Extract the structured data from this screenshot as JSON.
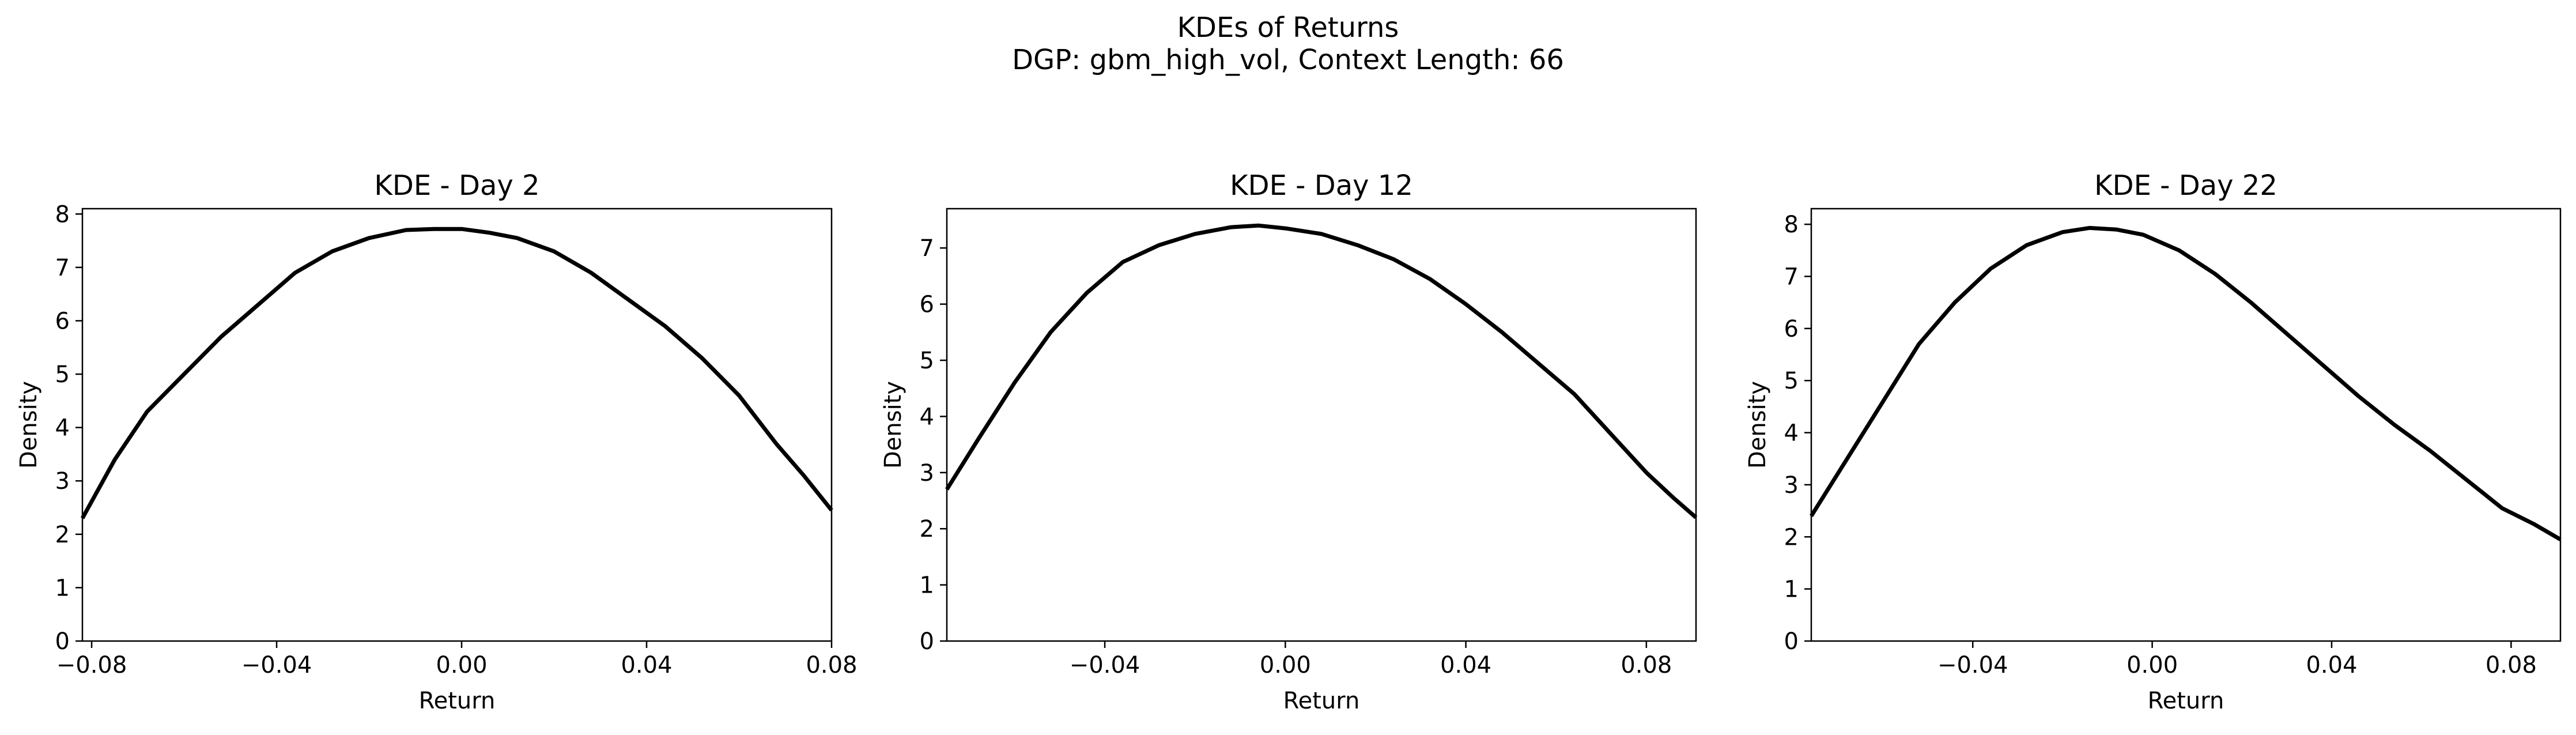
{
  "figure": {
    "title_line1": "KDEs of Returns",
    "title_line2": "DGP: gbm_high_vol, Context Length: 66"
  },
  "colors": {
    "curve": "#000000",
    "axes": "#000000",
    "background": "#ffffff"
  },
  "chart_data": [
    {
      "type": "line",
      "title": "KDE - Day 2",
      "xlabel": "Return",
      "ylabel": "Density",
      "xlim": [
        -0.082,
        0.08
      ],
      "ylim": [
        0,
        8.1
      ],
      "xticks": [
        -0.08,
        -0.04,
        0.0,
        0.04,
        0.08
      ],
      "xtick_labels": [
        "−0.08",
        "−0.04",
        "0.00",
        "0.04",
        "0.08"
      ],
      "yticks": [
        0,
        1,
        2,
        3,
        4,
        5,
        6,
        7,
        8
      ],
      "ytick_labels": [
        "0",
        "1",
        "2",
        "3",
        "4",
        "5",
        "6",
        "7",
        "8"
      ],
      "grid": false,
      "series": [
        {
          "x": [
            -0.082,
            -0.075,
            -0.068,
            -0.06,
            -0.052,
            -0.044,
            -0.036,
            -0.028,
            -0.02,
            -0.012,
            -0.006,
            0.0,
            0.006,
            0.012,
            0.02,
            0.028,
            0.036,
            0.044,
            0.052,
            0.06,
            0.068,
            0.074,
            0.08
          ],
          "y": [
            2.3,
            3.4,
            4.3,
            5.0,
            5.7,
            6.3,
            6.9,
            7.3,
            7.55,
            7.7,
            7.72,
            7.72,
            7.65,
            7.55,
            7.3,
            6.9,
            6.4,
            5.9,
            5.3,
            4.6,
            3.7,
            3.1,
            2.45
          ]
        }
      ]
    },
    {
      "type": "line",
      "title": "KDE - Day 12",
      "xlabel": "Return",
      "ylabel": "Density",
      "xlim": [
        -0.075,
        0.091
      ],
      "ylim": [
        0,
        7.7
      ],
      "xticks": [
        -0.04,
        0.0,
        0.04,
        0.08
      ],
      "xtick_labels": [
        "−0.04",
        "0.00",
        "0.04",
        "0.08"
      ],
      "yticks": [
        0,
        1,
        2,
        3,
        4,
        5,
        6,
        7
      ],
      "ytick_labels": [
        "0",
        "1",
        "2",
        "3",
        "4",
        "5",
        "6",
        "7"
      ],
      "grid": false,
      "series": [
        {
          "x": [
            -0.075,
            -0.068,
            -0.06,
            -0.052,
            -0.044,
            -0.036,
            -0.028,
            -0.02,
            -0.012,
            -0.006,
            0.0,
            0.008,
            0.016,
            0.024,
            0.032,
            0.04,
            0.048,
            0.056,
            0.064,
            0.072,
            0.08,
            0.086,
            0.091
          ],
          "y": [
            2.7,
            3.6,
            4.6,
            5.5,
            6.2,
            6.75,
            7.05,
            7.25,
            7.37,
            7.4,
            7.35,
            7.25,
            7.05,
            6.8,
            6.45,
            6.0,
            5.5,
            4.95,
            4.4,
            3.7,
            3.0,
            2.55,
            2.2
          ]
        }
      ]
    },
    {
      "type": "line",
      "title": "KDE - Day 22",
      "xlabel": "Return",
      "ylabel": "Density",
      "xlim": [
        -0.076,
        0.091
      ],
      "ylim": [
        0,
        8.3
      ],
      "xticks": [
        -0.04,
        0.0,
        0.04,
        0.08
      ],
      "xtick_labels": [
        "−0.04",
        "0.00",
        "0.04",
        "0.08"
      ],
      "yticks": [
        0,
        1,
        2,
        3,
        4,
        5,
        6,
        7,
        8
      ],
      "ytick_labels": [
        "0",
        "1",
        "2",
        "3",
        "4",
        "5",
        "6",
        "7",
        "8"
      ],
      "grid": false,
      "series": [
        {
          "x": [
            -0.076,
            -0.068,
            -0.06,
            -0.052,
            -0.044,
            -0.036,
            -0.028,
            -0.02,
            -0.014,
            -0.008,
            -0.002,
            0.006,
            0.014,
            0.022,
            0.03,
            0.038,
            0.046,
            0.054,
            0.062,
            0.07,
            0.078,
            0.085,
            0.091
          ],
          "y": [
            2.4,
            3.5,
            4.6,
            5.7,
            6.5,
            7.15,
            7.6,
            7.85,
            7.93,
            7.9,
            7.8,
            7.5,
            7.05,
            6.5,
            5.9,
            5.3,
            4.7,
            4.15,
            3.65,
            3.1,
            2.55,
            2.25,
            1.95
          ]
        }
      ]
    }
  ]
}
